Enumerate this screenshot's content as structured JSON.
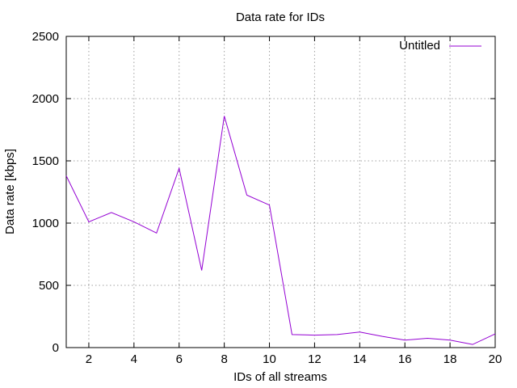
{
  "chart_data": {
    "type": "line",
    "title": "Data rate for IDs",
    "xlabel": "IDs of all streams",
    "ylabel": "Data rate [kbps]",
    "xlim": [
      1,
      20
    ],
    "ylim": [
      0,
      2500
    ],
    "xticks": [
      2,
      4,
      6,
      8,
      10,
      12,
      14,
      16,
      18,
      20
    ],
    "yticks": [
      0,
      500,
      1000,
      1500,
      2000,
      2500
    ],
    "grid": true,
    "legend_position": "top-right",
    "series": [
      {
        "name": "Untitled",
        "color": "#9400d3",
        "x": [
          1,
          2,
          3,
          4,
          5,
          6,
          7,
          8,
          9,
          10,
          11,
          12,
          13,
          14,
          15,
          16,
          17,
          18,
          19,
          20
        ],
        "y": [
          1380,
          1010,
          1085,
          1010,
          920,
          1440,
          620,
          1860,
          1225,
          1145,
          105,
          100,
          105,
          125,
          90,
          60,
          75,
          60,
          25,
          110
        ]
      }
    ]
  }
}
